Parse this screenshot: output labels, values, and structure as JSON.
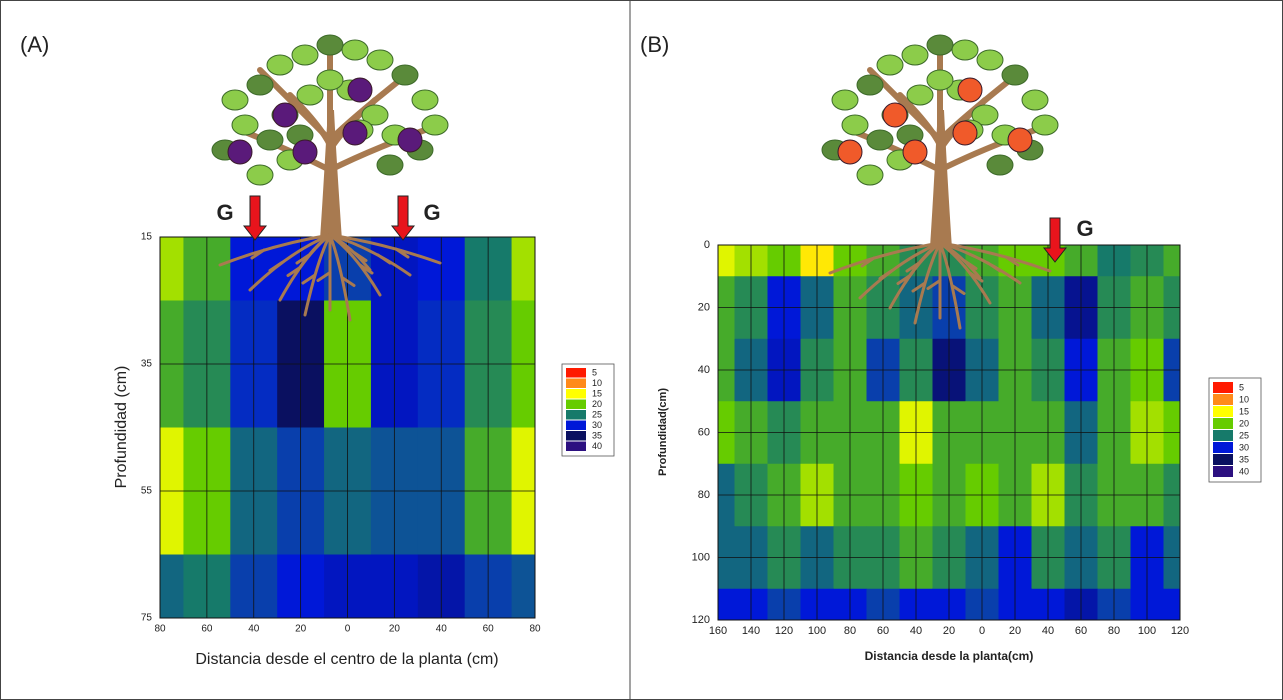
{
  "chart_data": [
    {
      "type": "heatmap",
      "panel_label": "(A)",
      "x_label": "Distancia desde el centro de la planta (cm)",
      "y_label": "Profundidad (cm)",
      "categories": [
        "80",
        "60",
        "40",
        "20",
        "0",
        "20",
        "40",
        "60",
        "80"
      ],
      "y": [
        15,
        35,
        55,
        75
      ],
      "ylim": [
        15,
        75
      ],
      "yticks": [
        15,
        35,
        55,
        75
      ],
      "y_inverted": true,
      "grid": true,
      "z": [
        [
          18,
          22,
          30,
          30,
          28,
          31,
          30,
          25,
          18
        ],
        [
          22,
          24,
          29,
          35,
          20,
          31,
          29,
          24,
          20
        ],
        [
          16,
          20,
          26,
          28,
          26,
          27,
          27,
          22,
          16
        ],
        [
          26,
          25,
          28,
          30,
          31,
          31,
          32,
          28,
          27
        ]
      ],
      "annotations": [
        "G",
        "G"
      ],
      "legend": {
        "levels": [
          5,
          10,
          15,
          20,
          25,
          30,
          35,
          40
        ],
        "colors": [
          "#ff1a00",
          "#ff8a1a",
          "#ffff00",
          "#66cc00",
          "#167a6a",
          "#0018d8",
          "#0a1060",
          "#2c1080"
        ]
      },
      "fruit_color": "#5a1a7a"
    },
    {
      "type": "heatmap",
      "panel_label": "(B)",
      "x_label": "Distancia desde la planta(cm)",
      "y_label": "Profundidad(cm)",
      "categories": [
        "160",
        "140",
        "120",
        "100",
        "80",
        "60",
        "40",
        "20",
        "0",
        "20",
        "40",
        "60",
        "80",
        "100",
        "120"
      ],
      "y": [
        0,
        20,
        40,
        60,
        80,
        100,
        120
      ],
      "ylim": [
        0,
        120
      ],
      "yticks": [
        0,
        20,
        40,
        60,
        80,
        100,
        120
      ],
      "y_inverted": true,
      "grid": true,
      "z": [
        [
          16,
          18,
          20,
          14,
          20,
          22,
          24,
          24,
          22,
          20,
          20,
          22,
          25,
          24,
          22
        ],
        [
          22,
          24,
          30,
          26,
          22,
          24,
          26,
          28,
          24,
          22,
          26,
          33,
          24,
          22,
          24
        ],
        [
          22,
          26,
          31,
          24,
          22,
          28,
          24,
          34,
          26,
          22,
          24,
          30,
          22,
          20,
          28
        ],
        [
          20,
          22,
          24,
          22,
          22,
          22,
          16,
          22,
          22,
          22,
          22,
          26,
          22,
          18,
          20
        ],
        [
          26,
          24,
          22,
          18,
          22,
          22,
          20,
          22,
          20,
          22,
          18,
          24,
          22,
          22,
          24
        ],
        [
          26,
          26,
          24,
          26,
          24,
          24,
          22,
          24,
          26,
          30,
          24,
          26,
          24,
          30,
          26
        ],
        [
          30,
          30,
          28,
          30,
          30,
          28,
          30,
          30,
          28,
          30,
          30,
          32,
          28,
          30,
          30
        ]
      ],
      "annotations": [
        "G"
      ],
      "legend": {
        "levels": [
          5,
          10,
          15,
          20,
          25,
          30,
          35,
          40
        ],
        "colors": [
          "#ff1a00",
          "#ff8a1a",
          "#ffff00",
          "#66cc00",
          "#167a6a",
          "#0018d8",
          "#0a1060",
          "#2c1080"
        ]
      },
      "fruit_color": "#f05a2a"
    }
  ]
}
